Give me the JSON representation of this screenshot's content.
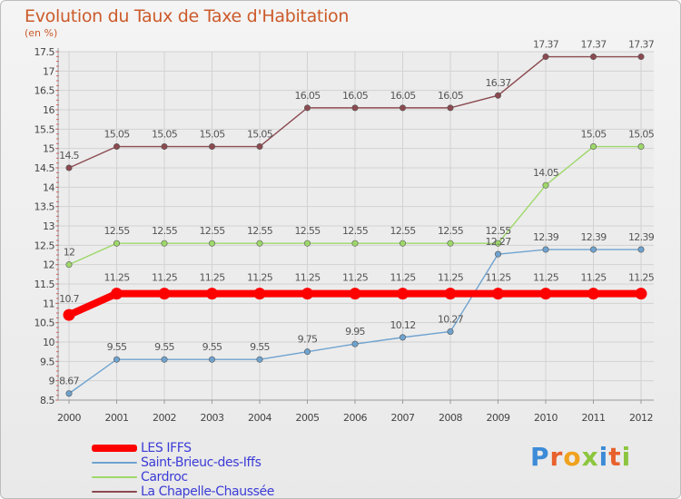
{
  "title": "Evolution du Taux de Taxe d'Habitation",
  "unit": "(en %)",
  "brand": "Proxiti",
  "chart_data": {
    "type": "line",
    "x": [
      "2000",
      "2001",
      "2002",
      "2003",
      "2004",
      "2005",
      "2006",
      "2007",
      "2008",
      "2009",
      "2010",
      "2011",
      "2012"
    ],
    "ylim": [
      8.5,
      17.5
    ],
    "yticks": [
      "8.5",
      "9",
      "9.5",
      "10",
      "10.5",
      "11",
      "11.5",
      "12",
      "12.5",
      "13",
      "13.5",
      "14",
      "14.5",
      "15",
      "15.5",
      "16",
      "16.5",
      "17",
      "17.5"
    ],
    "grid": true,
    "legend": "bottom-left",
    "series": [
      {
        "name": "LES IFFS",
        "color": "#ff0000",
        "values": [
          10.7,
          11.25,
          11.25,
          11.25,
          11.25,
          11.25,
          11.25,
          11.25,
          11.25,
          11.25,
          11.25,
          11.25,
          11.25
        ],
        "labels": [
          "10.7",
          "11.25",
          "11.25",
          "11.25",
          "11.25",
          "11.25",
          "11.25",
          "11.25",
          "11.25",
          "11.25",
          "11.25",
          "11.25",
          "11.25"
        ]
      },
      {
        "name": "Saint-Brieuc-des-Iffs",
        "color": "#6fa3cf",
        "values": [
          8.67,
          9.55,
          9.55,
          9.55,
          9.55,
          9.75,
          9.95,
          10.12,
          10.27,
          12.27,
          12.39,
          12.39,
          12.39
        ],
        "labels": [
          "8.67",
          "9.55",
          "9.55",
          "9.55",
          "9.55",
          "9.75",
          "9.95",
          "10.12",
          "10.27",
          "12.27",
          "12.39",
          "12.39",
          "12.39"
        ]
      },
      {
        "name": "Cardroc",
        "color": "#9ed86a",
        "values": [
          12,
          12.55,
          12.55,
          12.55,
          12.55,
          12.55,
          12.55,
          12.55,
          12.55,
          12.55,
          14.05,
          15.05,
          15.05
        ],
        "labels": [
          "12",
          "12.55",
          "12.55",
          "12.55",
          "12.55",
          "12.55",
          "12.55",
          "12.55",
          "12.55",
          "12.55",
          "14.05",
          "15.05",
          "15.05"
        ]
      },
      {
        "name": "La Chapelle-Chaussée",
        "color": "#8b4a50",
        "values": [
          14.5,
          15.05,
          15.05,
          15.05,
          15.05,
          16.05,
          16.05,
          16.05,
          16.05,
          16.37,
          17.37,
          17.37,
          17.37
        ],
        "labels": [
          "14.5",
          "15.05",
          "15.05",
          "15.05",
          "15.05",
          "16.05",
          "16.05",
          "16.05",
          "16.05",
          "16.37",
          "17.37",
          "17.37",
          "17.37"
        ]
      }
    ]
  }
}
